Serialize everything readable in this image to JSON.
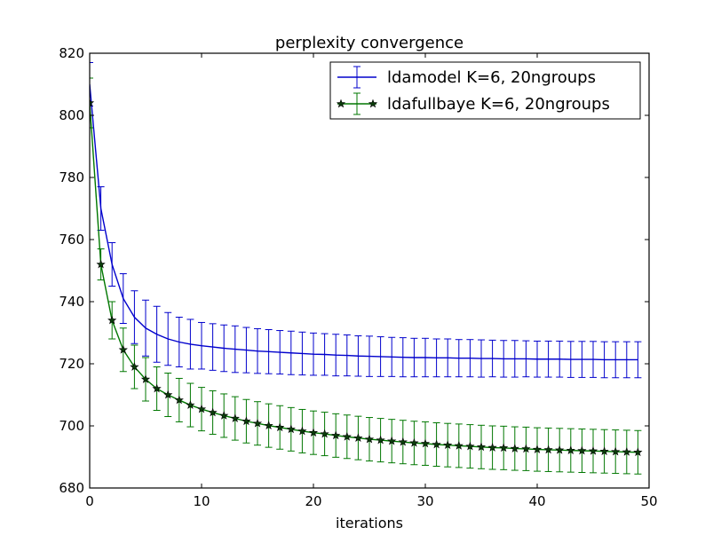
{
  "chart_data": {
    "type": "line",
    "title": "perplexity convergence",
    "xlabel": "iterations",
    "ylabel": "",
    "xlim": [
      0,
      50
    ],
    "ylim": [
      680,
      820
    ],
    "xticks": [
      0,
      10,
      20,
      30,
      40,
      50
    ],
    "yticks": [
      680,
      700,
      720,
      740,
      760,
      780,
      800,
      820
    ],
    "grid": false,
    "legend_position": "top-right",
    "x": [
      0,
      1,
      2,
      3,
      4,
      5,
      6,
      7,
      8,
      9,
      10,
      11,
      12,
      13,
      14,
      15,
      16,
      17,
      18,
      19,
      20,
      21,
      22,
      23,
      24,
      25,
      26,
      27,
      28,
      29,
      30,
      31,
      32,
      33,
      34,
      35,
      36,
      37,
      38,
      39,
      40,
      41,
      42,
      43,
      44,
      45,
      46,
      47,
      48,
      49
    ],
    "series": [
      {
        "name": "ldamodel K=6, 20ngroups",
        "color": "#0000cc",
        "marker": "none",
        "values": [
          810,
          770,
          752,
          741,
          735,
          731.5,
          729.5,
          728,
          727,
          726.3,
          725.8,
          725.4,
          725,
          724.7,
          724.4,
          724.1,
          723.9,
          723.7,
          723.5,
          723.3,
          723.1,
          723,
          722.8,
          722.7,
          722.5,
          722.4,
          722.3,
          722.2,
          722.1,
          722,
          722,
          721.9,
          721.9,
          721.8,
          721.8,
          721.7,
          721.7,
          721.6,
          721.6,
          721.6,
          721.5,
          721.5,
          721.5,
          721.4,
          721.4,
          721.4,
          721.3,
          721.3,
          721.3,
          721.3
        ],
        "errors": [
          7,
          7,
          7,
          8,
          8.5,
          9,
          9,
          8.5,
          8,
          8,
          7.5,
          7.5,
          7.5,
          7.5,
          7.3,
          7.2,
          7.1,
          7,
          7,
          6.9,
          6.8,
          6.7,
          6.7,
          6.6,
          6.5,
          6.5,
          6.4,
          6.3,
          6.3,
          6.2,
          6.2,
          6.1,
          6.1,
          6,
          6,
          6,
          5.9,
          5.9,
          5.9,
          5.8,
          5.8,
          5.8,
          5.8,
          5.8,
          5.8,
          5.8,
          5.8,
          5.8,
          5.8,
          5.8
        ]
      },
      {
        "name": "ldafullbaye K=6, 20ngroups",
        "color": "#007700",
        "marker": "star",
        "values": [
          804,
          752,
          734,
          724.5,
          719,
          715,
          712,
          710,
          708.3,
          706.7,
          705.4,
          704.3,
          703.3,
          702.4,
          701.5,
          700.8,
          700.1,
          699.5,
          698.9,
          698.3,
          697.8,
          697.4,
          696.9,
          696.5,
          696.1,
          695.7,
          695.4,
          695.1,
          694.8,
          694.5,
          694.3,
          694,
          693.8,
          693.6,
          693.4,
          693.2,
          693,
          692.9,
          692.7,
          692.6,
          692.4,
          692.3,
          692.2,
          692.1,
          692,
          691.9,
          691.8,
          691.7,
          691.6,
          691.5
        ],
        "errors": [
          8,
          5,
          6,
          7,
          7,
          7,
          7,
          7,
          7,
          7,
          7,
          7,
          7,
          7,
          7,
          7,
          7,
          7,
          7,
          7,
          7,
          7,
          7,
          7,
          7,
          7,
          7,
          7,
          7,
          7,
          7,
          7,
          7,
          7,
          7,
          7,
          7,
          7,
          7,
          7,
          7,
          7,
          7,
          7,
          7,
          7,
          7,
          7,
          7,
          7
        ]
      }
    ]
  }
}
